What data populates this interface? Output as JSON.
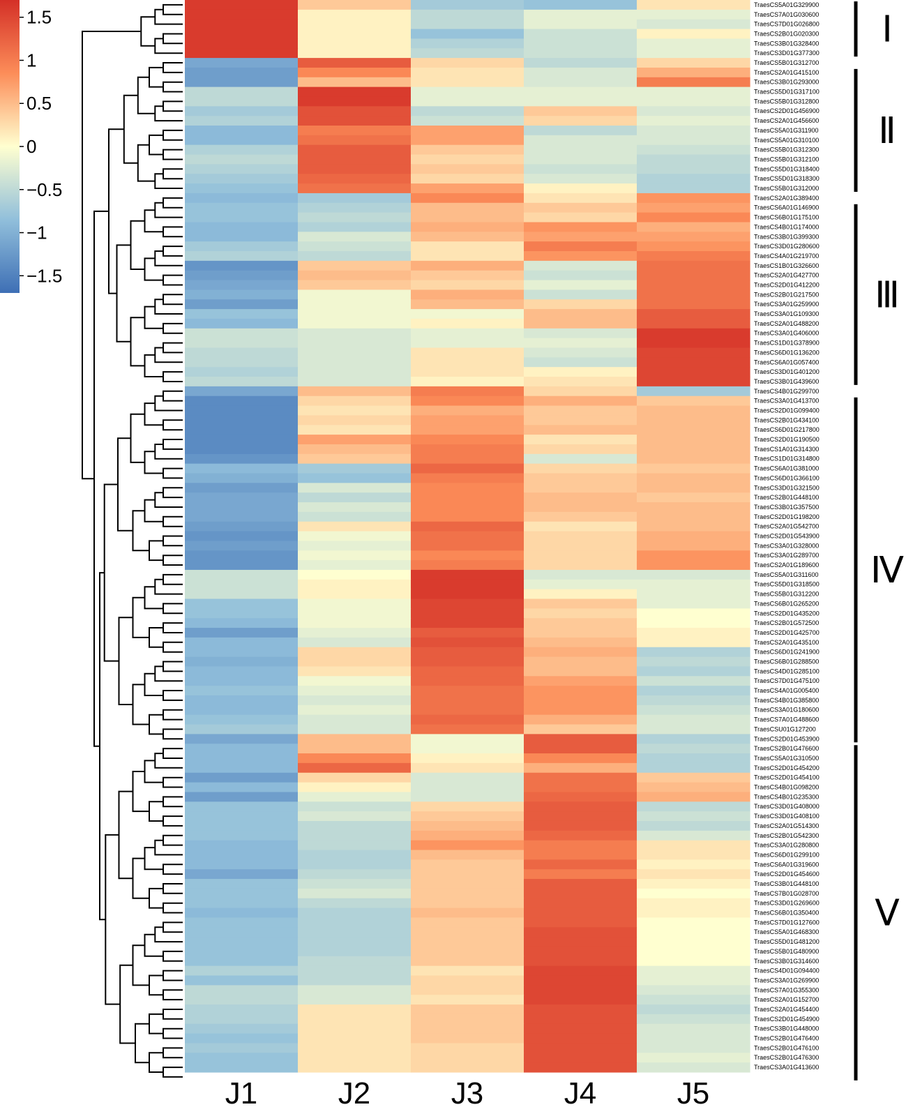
{
  "chart_data": {
    "type": "heatmap",
    "title": "",
    "columns": [
      "J1",
      "J2",
      "J3",
      "J4",
      "J5"
    ],
    "color_scale": {
      "ticks": [
        "1.5",
        "1",
        "0.5",
        "0",
        "−0.5",
        "−1",
        "−1.5"
      ],
      "tick_values": [
        1.5,
        1,
        0.5,
        0,
        -0.5,
        -1,
        -1.5
      ],
      "range": [
        -1.7,
        1.7
      ],
      "low_color": "#3e6fb5",
      "mid_color": "#ffffd0",
      "high_color": "#d43027"
    },
    "clusters": [
      {
        "label": "Ⅰ",
        "first_row": 0,
        "last_row": 5
      },
      {
        "label": "Ⅱ",
        "first_row": 7,
        "last_row": 19
      },
      {
        "label": "Ⅲ",
        "first_row": 21,
        "last_row": 39
      },
      {
        "label": "Ⅳ",
        "first_row": 41,
        "last_row": 76
      },
      {
        "label": "Ⅴ",
        "first_row": 77,
        "last_row": 111
      }
    ],
    "rows": [
      {
        "gene": "TraesCS5A01G329900",
        "values": [
          1.6,
          0.4,
          -0.7,
          -0.8,
          0.2
        ]
      },
      {
        "gene": "TraesCS7A01G030600",
        "values": [
          1.6,
          0.1,
          -0.5,
          -0.2,
          -0.2
        ]
      },
      {
        "gene": "TraesCS7D01G026800",
        "values": [
          1.6,
          0.1,
          -0.5,
          -0.2,
          -0.3
        ]
      },
      {
        "gene": "TraesCS2B01G020300",
        "values": [
          1.6,
          0.1,
          -0.8,
          -0.4,
          0.1
        ]
      },
      {
        "gene": "TraesCS3B01G328400",
        "values": [
          1.6,
          0.1,
          -0.6,
          -0.4,
          -0.2
        ]
      },
      {
        "gene": "TraesCS3D01G377300",
        "values": [
          1.6,
          0.1,
          -0.5,
          -0.4,
          -0.2
        ]
      },
      {
        "gene": "TraesCS5B01G312700",
        "values": [
          -1.1,
          1.3,
          0.3,
          -0.5,
          0.3
        ]
      },
      {
        "gene": "TraesCS2A01G415100",
        "values": [
          -1.2,
          0.9,
          0.2,
          -0.3,
          0.6
        ]
      },
      {
        "gene": "TraesCS3B01G293000",
        "values": [
          -1.2,
          0.5,
          0.2,
          -0.3,
          1.0
        ]
      },
      {
        "gene": "TraesCS5D01G317100",
        "values": [
          -0.5,
          1.6,
          -0.2,
          -0.2,
          -0.2
        ]
      },
      {
        "gene": "TraesCS5B01G312800",
        "values": [
          -0.5,
          1.6,
          -0.2,
          -0.2,
          -0.2
        ]
      },
      {
        "gene": "TraesCS2D01G456900",
        "values": [
          -0.7,
          1.4,
          -0.5,
          0.4,
          -0.3
        ]
      },
      {
        "gene": "TraesCS2A01G456600",
        "values": [
          -0.6,
          1.4,
          -0.4,
          0.3,
          -0.2
        ]
      },
      {
        "gene": "TraesCS5A01G311900",
        "values": [
          -0.9,
          1.0,
          0.7,
          -0.5,
          -0.3
        ]
      },
      {
        "gene": "TraesCS5A01G310100",
        "values": [
          -0.9,
          1.1,
          0.7,
          -0.3,
          -0.3
        ]
      },
      {
        "gene": "TraesCS5B01G312300",
        "values": [
          -0.6,
          1.3,
          0.4,
          -0.3,
          -0.4
        ]
      },
      {
        "gene": "TraesCS5B01G312100",
        "values": [
          -0.5,
          1.3,
          0.3,
          -0.3,
          -0.5
        ]
      },
      {
        "gene": "TraesCS5D01G318400",
        "values": [
          -0.6,
          1.3,
          0.4,
          -0.4,
          -0.5
        ]
      },
      {
        "gene": "TraesCS5D01G318300",
        "values": [
          -0.7,
          1.2,
          0.3,
          -0.3,
          -0.6
        ]
      },
      {
        "gene": "TraesCS5B01G312000",
        "values": [
          -0.8,
          1.1,
          0.7,
          0.1,
          -0.6
        ]
      },
      {
        "gene": "TraesCS2A01G389400",
        "values": [
          -0.9,
          -0.7,
          0.9,
          0.2,
          0.8
        ]
      },
      {
        "gene": "TraesCS6A01G146900",
        "values": [
          -0.8,
          -0.6,
          0.5,
          0.4,
          0.7
        ]
      },
      {
        "gene": "TraesCS6B01G175100",
        "values": [
          -0.8,
          -0.5,
          0.5,
          0.3,
          0.9
        ]
      },
      {
        "gene": "TraesCS4B01G174000",
        "values": [
          -0.9,
          -0.6,
          0.6,
          0.8,
          0.6
        ]
      },
      {
        "gene": "TraesCS3B01G399300",
        "values": [
          -0.9,
          -0.3,
          0.5,
          0.7,
          0.7
        ]
      },
      {
        "gene": "TraesCS3D01G280600",
        "values": [
          -0.7,
          -0.4,
          0.2,
          1.0,
          0.8
        ]
      },
      {
        "gene": "TraesCS4A01G219700",
        "values": [
          -0.6,
          -0.5,
          0.2,
          0.8,
          1.0
        ]
      },
      {
        "gene": "TraesCS1B01G326600",
        "values": [
          -1.3,
          0.4,
          0.6,
          -0.3,
          1.1
        ]
      },
      {
        "gene": "TraesCS2A01G427700",
        "values": [
          -1.2,
          0.5,
          0.4,
          -0.4,
          1.1
        ]
      },
      {
        "gene": "TraesCS2D01G412200",
        "values": [
          -1.1,
          0.4,
          0.3,
          -0.2,
          1.1
        ]
      },
      {
        "gene": "TraesCS2B01G217500",
        "values": [
          -1.0,
          -0.1,
          0.6,
          -0.4,
          1.1
        ]
      },
      {
        "gene": "TraesCS3A01G259900",
        "values": [
          -1.2,
          -0.1,
          0.5,
          0.3,
          1.1
        ]
      },
      {
        "gene": "TraesCS3A01G109300",
        "values": [
          -0.8,
          -0.1,
          -0.1,
          0.5,
          1.3
        ]
      },
      {
        "gene": "TraesCS2A01G488200",
        "values": [
          -0.9,
          -0.1,
          0.1,
          0.5,
          1.3
        ]
      },
      {
        "gene": "TraesCS3A01G406000",
        "values": [
          -0.4,
          -0.3,
          -0.2,
          -0.3,
          1.6
        ]
      },
      {
        "gene": "TraesCS1D01G378900",
        "values": [
          -0.4,
          -0.3,
          -0.2,
          -0.2,
          1.6
        ]
      },
      {
        "gene": "TraesCS6D01G136200",
        "values": [
          -0.5,
          -0.3,
          0.2,
          -0.3,
          1.5
        ]
      },
      {
        "gene": "TraesCS6A01G057400",
        "values": [
          -0.5,
          -0.3,
          0.2,
          -0.4,
          1.5
        ]
      },
      {
        "gene": "TraesCS3D01G401200",
        "values": [
          -0.6,
          -0.3,
          0.2,
          0.1,
          1.5
        ]
      },
      {
        "gene": "TraesCS3B01G439600",
        "values": [
          -0.5,
          -0.3,
          0.1,
          0.2,
          1.5
        ]
      },
      {
        "gene": "TraesCS4B01G299700",
        "values": [
          -1.1,
          0.5,
          1.0,
          0.3,
          -0.7
        ]
      },
      {
        "gene": "TraesCS3A01G413700",
        "values": [
          -1.4,
          0.3,
          0.9,
          0.6,
          0.4
        ]
      },
      {
        "gene": "TraesCS2D01G099400",
        "values": [
          -1.4,
          0.2,
          0.6,
          0.4,
          0.5
        ]
      },
      {
        "gene": "TraesCS2B01G434100",
        "values": [
          -1.4,
          0.3,
          0.7,
          0.4,
          0.5
        ]
      },
      {
        "gene": "TraesCS6D01G217800",
        "values": [
          -1.4,
          0.2,
          0.7,
          0.5,
          0.5
        ]
      },
      {
        "gene": "TraesCS2D01G190500",
        "values": [
          -1.4,
          0.7,
          0.9,
          0.2,
          0.5
        ]
      },
      {
        "gene": "TraesCS1A01G314300",
        "values": [
          -1.4,
          0.5,
          1.0,
          0.3,
          0.5
        ]
      },
      {
        "gene": "TraesCS1D01G314800",
        "values": [
          -1.3,
          0.4,
          1.0,
          -0.3,
          0.5
        ]
      },
      {
        "gene": "TraesCS6A01G381000",
        "values": [
          -0.9,
          -0.7,
          1.2,
          0.3,
          0.4
        ]
      },
      {
        "gene": "TraesCS6D01G366100",
        "values": [
          -1.0,
          -0.8,
          1.0,
          0.4,
          0.5
        ]
      },
      {
        "gene": "TraesCS3D01G321500",
        "values": [
          -1.2,
          -0.3,
          0.9,
          0.4,
          0.5
        ]
      },
      {
        "gene": "TraesCS2B01G448100",
        "values": [
          -1.1,
          -0.5,
          0.9,
          0.5,
          0.4
        ]
      },
      {
        "gene": "TraesCS3B01G357500",
        "values": [
          -1.1,
          -0.3,
          0.9,
          0.5,
          0.5
        ]
      },
      {
        "gene": "TraesCS2D01G198200",
        "values": [
          -1.1,
          -0.4,
          0.9,
          0.4,
          0.5
        ]
      },
      {
        "gene": "TraesCS2A01G542700",
        "values": [
          -1.2,
          0.2,
          1.2,
          0.2,
          0.5
        ]
      },
      {
        "gene": "TraesCS2D01G543900",
        "values": [
          -1.3,
          -0.1,
          1.1,
          0.3,
          0.6
        ]
      },
      {
        "gene": "TraesCS3A01G328000",
        "values": [
          -1.2,
          -0.2,
          1.1,
          0.3,
          0.6
        ]
      },
      {
        "gene": "TraesCS3A01G289700",
        "values": [
          -1.3,
          -0.1,
          0.9,
          0.3,
          0.8
        ]
      },
      {
        "gene": "TraesCS2A01G189600",
        "values": [
          -1.3,
          -0.2,
          1.0,
          0.3,
          0.8
        ]
      },
      {
        "gene": "TraesCS5A01G311600",
        "values": [
          -0.4,
          0.0,
          1.6,
          -0.3,
          -0.3
        ]
      },
      {
        "gene": "TraesCS5D01G318500",
        "values": [
          -0.4,
          0.1,
          1.6,
          -0.2,
          -0.2
        ]
      },
      {
        "gene": "TraesCS5B01G312200",
        "values": [
          -0.4,
          0.1,
          1.6,
          0.1,
          -0.2
        ]
      },
      {
        "gene": "TraesCS6B01G265200",
        "values": [
          -0.8,
          -0.1,
          1.5,
          0.4,
          -0.2
        ]
      },
      {
        "gene": "TraesCS2D01G435200",
        "values": [
          -0.8,
          -0.1,
          1.5,
          0.3,
          0.0
        ]
      },
      {
        "gene": "TraesCS2B01G572500",
        "values": [
          -0.9,
          -0.1,
          1.5,
          0.4,
          0.0
        ]
      },
      {
        "gene": "TraesCS2D01G425700",
        "values": [
          -1.2,
          -0.2,
          1.3,
          0.4,
          0.1
        ]
      },
      {
        "gene": "TraesCS2A01G435100",
        "values": [
          -0.9,
          -0.3,
          1.4,
          0.5,
          0.1
        ]
      },
      {
        "gene": "TraesCS6D01G241900",
        "values": [
          -0.9,
          0.3,
          1.3,
          0.6,
          -0.6
        ]
      },
      {
        "gene": "TraesCS6B01G288500",
        "values": [
          -1.0,
          0.3,
          1.3,
          0.5,
          -0.5
        ]
      },
      {
        "gene": "TraesCS4D01G285100",
        "values": [
          -0.9,
          0.2,
          1.2,
          0.5,
          -0.6
        ]
      },
      {
        "gene": "TraesCS7D01G475100",
        "values": [
          -0.9,
          -0.1,
          1.2,
          0.7,
          -0.4
        ]
      },
      {
        "gene": "TraesCS4A01G005400",
        "values": [
          -0.8,
          -0.2,
          1.1,
          0.8,
          -0.6
        ]
      },
      {
        "gene": "TraesCS4B01G385800",
        "values": [
          -0.9,
          -0.3,
          1.1,
          0.8,
          -0.5
        ]
      },
      {
        "gene": "TraesCS3A01G180600",
        "values": [
          -0.9,
          -0.2,
          1.1,
          0.8,
          -0.4
        ]
      },
      {
        "gene": "TraesCS7A01G488600",
        "values": [
          -0.8,
          -0.3,
          1.2,
          0.6,
          -0.3
        ]
      },
      {
        "gene": "TraesCSU01G127200",
        "values": [
          -0.7,
          -0.3,
          1.1,
          0.4,
          -0.3
        ]
      },
      {
        "gene": "TraesCS2D01G453900",
        "values": [
          -1.1,
          0.5,
          -0.1,
          1.3,
          -0.6
        ]
      },
      {
        "gene": "TraesCS2B01G476600",
        "values": [
          -0.9,
          0.5,
          -0.1,
          1.3,
          -0.5
        ]
      },
      {
        "gene": "TraesCS5A01G310500",
        "values": [
          -0.9,
          0.9,
          0.1,
          0.9,
          -0.6
        ]
      },
      {
        "gene": "TraesCS2D01G454200",
        "values": [
          -0.9,
          1.2,
          0.2,
          0.6,
          -0.6
        ]
      },
      {
        "gene": "TraesCS2D01G454100",
        "values": [
          -1.2,
          0.3,
          -0.3,
          1.1,
          0.4
        ]
      },
      {
        "gene": "TraesCS4B01G098200",
        "values": [
          -0.9,
          0.1,
          -0.3,
          1.1,
          0.5
        ]
      },
      {
        "gene": "TraesCS4B01G235300",
        "values": [
          -1.2,
          -0.2,
          -0.3,
          1.2,
          0.6
        ]
      },
      {
        "gene": "TraesCS3D01G408000",
        "values": [
          -0.8,
          -0.4,
          0.3,
          1.3,
          -0.5
        ]
      },
      {
        "gene": "TraesCS3D01G408100",
        "values": [
          -0.8,
          -0.3,
          0.4,
          1.3,
          -0.4
        ]
      },
      {
        "gene": "TraesCS2A01G514300",
        "values": [
          -0.8,
          -0.5,
          0.5,
          1.3,
          -0.5
        ]
      },
      {
        "gene": "TraesCS2B01G542300",
        "values": [
          -0.8,
          -0.5,
          0.6,
          1.2,
          -0.3
        ]
      },
      {
        "gene": "TraesCS3A01G280800",
        "values": [
          -0.9,
          -0.5,
          0.8,
          1.0,
          0.2
        ]
      },
      {
        "gene": "TraesCS6D01G299100",
        "values": [
          -0.9,
          -0.6,
          0.5,
          1.0,
          0.2
        ]
      },
      {
        "gene": "TraesCS6A01G319600",
        "values": [
          -0.9,
          -0.6,
          0.4,
          1.2,
          0.1
        ]
      },
      {
        "gene": "TraesCS2D01G454600",
        "values": [
          -1.1,
          -0.5,
          0.4,
          1.0,
          0.2
        ]
      },
      {
        "gene": "TraesCS3B01G448100",
        "values": [
          -0.8,
          -0.4,
          0.4,
          1.3,
          0.1
        ]
      },
      {
        "gene": "TraesCS7B01G028700",
        "values": [
          -0.8,
          -0.3,
          0.4,
          1.3,
          0.0
        ]
      },
      {
        "gene": "TraesCS3D01G269600",
        "values": [
          -0.8,
          -0.5,
          0.4,
          1.3,
          0.1
        ]
      },
      {
        "gene": "TraesCS6B01G350400",
        "values": [
          -0.9,
          -0.6,
          0.5,
          1.3,
          0.1
        ]
      },
      {
        "gene": "TraesCS7D01G127600",
        "values": [
          -0.8,
          -0.6,
          0.4,
          1.3,
          0.0
        ]
      },
      {
        "gene": "TraesCS5A01G468300",
        "values": [
          -0.8,
          -0.6,
          0.4,
          1.4,
          0.0
        ]
      },
      {
        "gene": "TraesCS5D01G481200",
        "values": [
          -0.8,
          -0.6,
          0.4,
          1.4,
          0.0
        ]
      },
      {
        "gene": "TraesCS5B01G480900",
        "values": [
          -0.8,
          -0.6,
          0.4,
          1.4,
          0.0
        ]
      },
      {
        "gene": "TraesCS3B01G314600",
        "values": [
          -0.8,
          -0.5,
          0.4,
          1.4,
          0.0
        ]
      },
      {
        "gene": "TraesCS4D01G094400",
        "values": [
          -0.6,
          -0.5,
          0.2,
          1.5,
          -0.2
        ]
      },
      {
        "gene": "TraesCS3A01G269900",
        "values": [
          -0.8,
          -0.5,
          0.3,
          1.5,
          -0.2
        ]
      },
      {
        "gene": "TraesCS7A01G355300",
        "values": [
          -0.5,
          -0.3,
          0.3,
          1.5,
          -0.3
        ]
      },
      {
        "gene": "TraesCS2A01G152700",
        "values": [
          -0.5,
          -0.3,
          0.2,
          1.5,
          -0.4
        ]
      },
      {
        "gene": "TraesCS2A01G454400",
        "values": [
          -0.6,
          0.2,
          0.4,
          1.4,
          -0.5
        ]
      },
      {
        "gene": "TraesCS2D01G454900",
        "values": [
          -0.6,
          0.2,
          0.4,
          1.4,
          -0.4
        ]
      },
      {
        "gene": "TraesCS3B01G448000",
        "values": [
          -0.7,
          0.2,
          0.4,
          1.4,
          -0.3
        ]
      },
      {
        "gene": "TraesCS2B01G476400",
        "values": [
          -0.8,
          0.2,
          0.4,
          1.4,
          -0.3
        ]
      },
      {
        "gene": "TraesCS2B01G476100",
        "values": [
          -0.7,
          0.2,
          0.3,
          1.4,
          -0.3
        ]
      },
      {
        "gene": "TraesCS2B01G476300",
        "values": [
          -0.8,
          0.2,
          0.3,
          1.4,
          -0.2
        ]
      },
      {
        "gene": "TraesCS3A01G413600",
        "values": [
          -0.8,
          0.2,
          0.3,
          1.4,
          -0.3
        ]
      }
    ]
  }
}
